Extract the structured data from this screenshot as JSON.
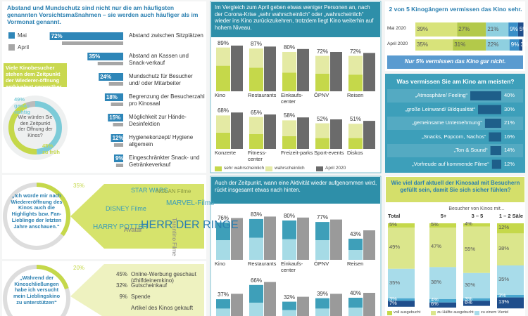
{
  "chart_data": [
    {
      "type": "bar",
      "orientation": "horizontal",
      "title": "Abstand und Mundschutz sind nicht nur die am häufigsten genannten Vorsichtsmaßnahmen – sie werden auch häufiger als im Vormonat genannt.",
      "categories": [
        "Abstand zwischen Sitzplätzen",
        "Abstand an Kassen und Snack-verkauf",
        "Mundschutz für Besucher und/ oder Mitarbeiter",
        "Begrenzung der Besucherzahl pro Kinosaal",
        "Möglichkeit zur Hände-Desinfektion",
        "Hygienekonzept/ Hygiene allgemein",
        "Eingeschränkter Snack- und Getränkeverkauf"
      ],
      "series": [
        {
          "name": "Mai",
          "color": "#2e86b8",
          "values": [
            72,
            35,
            24,
            18,
            15,
            12,
            9
          ],
          "value_labels": [
            "72%",
            "35%",
            "24%",
            "18%",
            "15%",
            "12%",
            "9%"
          ]
        },
        {
          "name": "April",
          "color": "#a6a6a6",
          "values": [
            60,
            25,
            14,
            12,
            10,
            9,
            7
          ]
        }
      ]
    },
    {
      "type": "pie",
      "title": "Viele Kinobesucher stehen dem Zeitpunkt der Wiederer-öffnung ambivalent gegenüber.",
      "question": "Wie würden Sie den Zeitpunkt der Öffnung der Kinos?",
      "categories": [
        "genau richtig",
        "zu früh",
        null
      ],
      "values": [
        49,
        45,
        6
      ],
      "value_labels": [
        "49%",
        "45%",
        null
      ],
      "colors": [
        "#7ccbd8",
        "#c5d84a",
        "#bbbbbb"
      ]
    },
    {
      "type": "bar",
      "title": "Im Vergleich zum April geben etwas weniger Personen an, nach der Corona-Krise „sehr wahrscheinlich“ oder „wahrscheinlich“ wieder ins Kino zurückzukehren, trotzdem liegt Kino weiterhin auf hohem Niveau.",
      "categories": [
        "Kino",
        "Restaurants",
        "Einkaufs-center",
        "ÖPNV",
        "Reisen",
        "Konzerte",
        "Fitness-center",
        "Freizeit-parks",
        "Sport-events",
        "Diskos"
      ],
      "series": [
        {
          "name": "sehr wahrscheinlich",
          "color": "#c5d84a",
          "values": [
            52,
            48,
            38,
            36,
            34,
            33,
            30,
            26,
            22,
            22
          ]
        },
        {
          "name": "wahrscheinlich",
          "color": "#e4eaa4",
          "values": [
            37,
            39,
            42,
            36,
            38,
            35,
            35,
            32,
            30,
            29
          ]
        },
        {
          "name": "April 2020",
          "color": "#6b6b6b",
          "values": [
            93,
            91,
            86,
            80,
            78,
            74,
            70,
            64,
            60,
            57
          ]
        }
      ],
      "totals": [
        89,
        87,
        80,
        72,
        72,
        68,
        65,
        58,
        52,
        51
      ],
      "total_labels": [
        "89%",
        "87%",
        "80%",
        "72%",
        "72%",
        "68%",
        "65%",
        "58%",
        "52%",
        "51%"
      ]
    },
    {
      "type": "bar",
      "title": "Auch der Zeitpunkt, wann eine Aktivität wieder aufgenommen wird, rückt insgesamt etwas nach hinten.",
      "categories": [
        "Kino",
        "Restaurants",
        "Einkaufs-center",
        "ÖPNV",
        "Reisen",
        null,
        null,
        null,
        null,
        null
      ],
      "series": [
        {
          "color": "#a6dbe6",
          "values": [
            40,
            45,
            42,
            40,
            20,
            18,
            30,
            15,
            18,
            20
          ]
        },
        {
          "color": "#3e9fb9",
          "values": [
            36,
            38,
            38,
            37,
            23,
            19,
            36,
            17,
            21,
            20
          ]
        },
        {
          "color": "#9a9a9a",
          "values": [
            85,
            88,
            86,
            82,
            60,
            48,
            72,
            42,
            48,
            50
          ]
        }
      ],
      "totals": [
        76,
        83,
        80,
        77,
        43,
        37,
        66,
        32,
        39,
        40
      ],
      "total_labels": [
        "76%",
        "83%",
        "80%",
        "77%",
        "43%",
        "37%",
        "66%",
        "32%",
        "39%",
        "40%"
      ]
    },
    {
      "type": "bar",
      "orientation": "horizontal",
      "stacked": true,
      "title": "2 von 5 Kinogängern vermissen das Kino sehr.",
      "categories": [
        "Mai 2020",
        "April 2020"
      ],
      "series": [
        {
          "color": "#d8e37a",
          "values": [
            39,
            35
          ],
          "value_labels": [
            "39%",
            "35%"
          ]
        },
        {
          "color": "#b3c94a",
          "values": [
            27,
            31
          ],
          "value_labels": [
            "27%",
            "31%"
          ]
        },
        {
          "color": "#8fd0e0",
          "values": [
            21,
            22
          ],
          "value_labels": [
            "21%",
            "22%"
          ]
        },
        {
          "color": "#3a8fc8",
          "values": [
            9,
            9
          ],
          "value_labels": [
            "9%",
            "9%"
          ]
        },
        {
          "color": "#1f4e8c",
          "values": [
            5,
            3
          ],
          "value_labels": [
            "5%",
            "3%"
          ]
        }
      ],
      "annotation": "Nur 5% vermissen das Kino gar nicht."
    },
    {
      "type": "bar",
      "orientation": "horizontal",
      "title": "Was vermissen Sie am Kino am meisten?",
      "categories": [
        "„Atmosphäre/ Feeling“",
        "„große Leinwand/ Bildqualität“",
        "„gemeinsame Unternehmung“",
        "„Snacks, Popcorn, Nachos“",
        "„Ton & Sound“",
        "„Vorfreude auf kommende Filme“"
      ],
      "values": [
        40,
        30,
        21,
        16,
        14,
        12
      ],
      "value_labels": [
        "40%",
        "30%",
        "21%",
        "16%",
        "14%",
        "12%"
      ],
      "color": "#1e5f8a"
    },
    {
      "type": "bar",
      "stacked": true,
      "title": "Wie viel darf aktuell der Kinosaal mit Besuchern gefüllt sein, damit Sie sich sicher fühlen?",
      "subtitle": "Besucher von Kinos mit...",
      "categories": [
        "Total",
        "5+",
        "3 – 5",
        "1 – 2 Säle"
      ],
      "series": [
        {
          "name": "voll ausgebucht",
          "color": "#c5d84a",
          "values": [
            5,
            5,
            4,
            12
          ],
          "value_labels": [
            "5%",
            "5%",
            "4%",
            "12%"
          ]
        },
        {
          "name": "zu Hälfte ausgebucht",
          "color": "#dbe68c",
          "values": [
            49,
            47,
            55,
            38
          ],
          "value_labels": [
            "49%",
            "47%",
            "55%",
            "38%"
          ]
        },
        {
          "name": "zu einem Viertel",
          "color": "#a8dcea",
          "values": [
            35,
            38,
            30,
            35
          ],
          "value_labels": [
            "35%",
            "38%",
            "30%",
            "35%"
          ]
        },
        {
          "color": "#4aa8d0",
          "values": [
            3,
            4,
            3,
            3
          ],
          "value_labels": [
            "3%",
            "4%",
            "3%",
            "3%"
          ]
        },
        {
          "color": "#1f4e8c",
          "values": [
            7,
            6,
            6,
            13
          ],
          "value_labels": [
            "7%",
            "6%",
            "6%",
            "13%"
          ]
        }
      ]
    },
    {
      "type": "pie",
      "values": [
        35
      ],
      "value_labels": [
        "35%"
      ],
      "color": "#c5d84a",
      "quote": "„Ich würde mir nach Wiedereröffnung des Kinos auch die Highlights bzw. Fan-Lieblinge der letzten Jahre anschauen.“",
      "word_cloud": [
        "DISNEY Filme",
        "STAR WARS",
        "NOLAN Filme",
        "MARVEL-Filme",
        "HARRY POTTER",
        "Avatar",
        "HERR DER RINGE",
        "Tarantino Filme"
      ]
    },
    {
      "type": "pie",
      "values": [
        20
      ],
      "value_labels": [
        "20%"
      ],
      "color": "#c5d84a",
      "quote": "„Während der Kinoschließungen habe ich versucht mein Lieblingskino zu unterstützen“",
      "items": {
        "categories": [
          "Online-Werbung geschaut (#hilfdeinemkino)",
          "Gutscheinkauf",
          "Spende",
          "Artikel des Kinos gekauft"
        ],
        "values": [
          45,
          32,
          9,
          null
        ],
        "value_labels": [
          "45%",
          "32%",
          "9%",
          null
        ]
      }
    }
  ]
}
